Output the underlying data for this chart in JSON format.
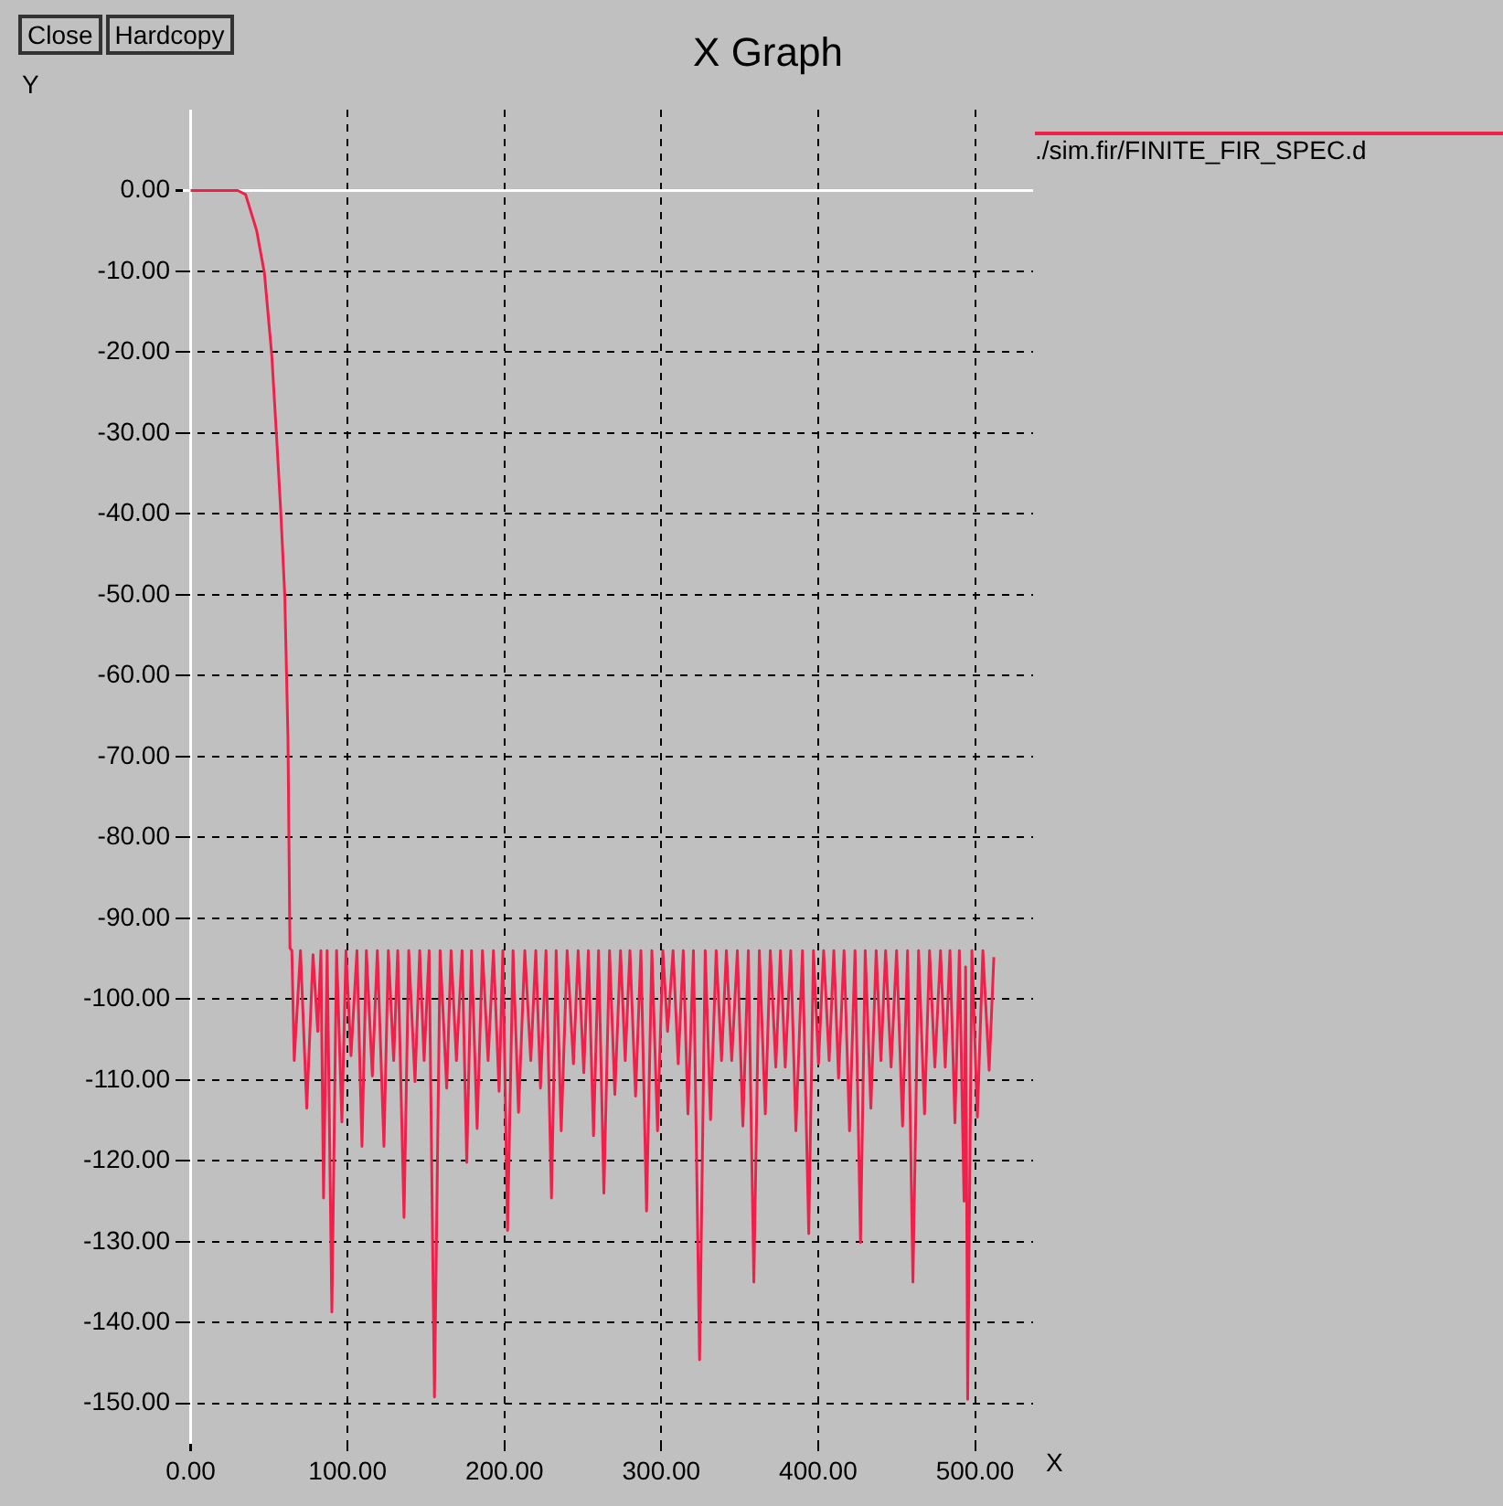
{
  "chart_data": {
    "type": "line",
    "title": "X Graph",
    "xlabel": "X",
    "ylabel": "Y",
    "annotations": [
      "Close",
      "Hardcopy"
    ],
    "xlim": [
      -5,
      537
    ],
    "ylim": [
      -155,
      10
    ],
    "xticks": [
      {
        "value": 0,
        "label": "0.00"
      },
      {
        "value": 100,
        "label": "100.00"
      },
      {
        "value": 200,
        "label": "200.00"
      },
      {
        "value": 300,
        "label": "300.00"
      },
      {
        "value": 400,
        "label": "400.00"
      },
      {
        "value": 500,
        "label": "500.00"
      }
    ],
    "yticks": [
      {
        "value": 0,
        "label": "0.00"
      },
      {
        "value": -10,
        "label": "-10.00"
      },
      {
        "value": -20,
        "label": "-20.00"
      },
      {
        "value": -30,
        "label": "-30.00"
      },
      {
        "value": -40,
        "label": "-40.00"
      },
      {
        "value": -50,
        "label": "-50.00"
      },
      {
        "value": -60,
        "label": "-60.00"
      },
      {
        "value": -70,
        "label": "-70.00"
      },
      {
        "value": -80,
        "label": "-80.00"
      },
      {
        "value": -90,
        "label": "-90.00"
      },
      {
        "value": -100,
        "label": "-100.00"
      },
      {
        "value": -110,
        "label": "-110.00"
      },
      {
        "value": -120,
        "label": "-120.00"
      },
      {
        "value": -130,
        "label": "-130.00"
      },
      {
        "value": -140,
        "label": "-140.00"
      },
      {
        "value": -150,
        "label": "-150.00"
      }
    ],
    "grid": true,
    "legend": "top right",
    "marker": "none",
    "line_style": "solid",
    "series": [
      {
        "name": "./sim.fir/FINITE_FIR_SPEC.d",
        "color": "#f0204a",
        "x": [
          0,
          30,
          35,
          42,
          47,
          51.7,
          54.8,
          57.5,
          60,
          62,
          63.3,
          64.5,
          66,
          70,
          74,
          78,
          81,
          83,
          84.7,
          87,
          90,
          93,
          96.4,
          99,
          102.2,
          106,
          109.2,
          112,
          115.8,
          119,
          123.2,
          126,
          129.4,
          132,
          136,
          139,
          143,
          146,
          148.8,
          152,
          155.4,
          159,
          163.2,
          166,
          169.4,
          173,
          176,
          179,
          182.6,
          186,
          189.6,
          193,
          196.6,
          199,
          202,
          205.5,
          209,
          213,
          216.8,
          220,
          223,
          226.5,
          230,
          233,
          236.2,
          240,
          244,
          247,
          250.6,
          253.5,
          256.8,
          260,
          263.4,
          267,
          270.4,
          274,
          277,
          280,
          283.6,
          287,
          290.6,
          294,
          297.6,
          301,
          304,
          307.5,
          310.8,
          314,
          317,
          320.5,
          324.4,
          328,
          331.4,
          335,
          338.4,
          341.5,
          344.9,
          348.5,
          352,
          355.5,
          359,
          362.5,
          366.3,
          369.5,
          373,
          376,
          379,
          382.5,
          385.8,
          390,
          394,
          397,
          400.2,
          403.5,
          407,
          410,
          413,
          416.5,
          420,
          423.5,
          427,
          430,
          433.6,
          437,
          440,
          443,
          446.5,
          450,
          453.8,
          457,
          460.4,
          464,
          467.8,
          471,
          474.4,
          478,
          481,
          484,
          487.2,
          490,
          493,
          494,
          495.3,
          498,
          501.5,
          505,
          509,
          512
        ],
        "values": [
          0,
          0,
          -0.5,
          -4.9,
          -10.2,
          -20.4,
          -30.6,
          -40,
          -50.2,
          -67.6,
          -93.7,
          -94,
          -107.6,
          -94,
          -113.5,
          -94.5,
          -104,
          -94,
          -124.6,
          -94,
          -138.7,
          -94,
          -115.2,
          -94,
          -107,
          -94,
          -118.2,
          -94,
          -109.5,
          -94,
          -118.2,
          -94,
          -107.6,
          -94,
          -127,
          -94,
          -110.2,
          -94,
          -107.6,
          -94,
          -149.2,
          -94,
          -111,
          -94,
          -107.6,
          -94,
          -120.2,
          -94,
          -116,
          -94,
          -107.6,
          -94,
          -111.4,
          -94,
          -128.6,
          -94,
          -114,
          -94,
          -107.6,
          -94,
          -111,
          -94,
          -124.6,
          -94,
          -116.3,
          -94,
          -108,
          -94,
          -109.1,
          -94,
          -116.9,
          -94,
          -124,
          -94,
          -111.8,
          -94,
          -107.6,
          -94,
          -112,
          -94,
          -126.2,
          -94,
          -116.3,
          -94,
          -104,
          -94,
          -108,
          -94,
          -114.2,
          -94,
          -144.6,
          -94,
          -114.9,
          -94,
          -107.6,
          -94,
          -107.6,
          -94,
          -115.7,
          -94,
          -135,
          -94,
          -114.2,
          -94,
          -108.4,
          -94,
          -108.4,
          -94,
          -116.3,
          -94,
          -129,
          -94,
          -108,
          -94,
          -107.6,
          -94,
          -109.8,
          -94,
          -116.3,
          -94,
          -130.1,
          -94,
          -113.5,
          -94,
          -107.6,
          -94,
          -108.4,
          -94,
          -115.7,
          -94,
          -135,
          -94,
          -114.2,
          -94,
          -108.4,
          -94,
          -108.4,
          -94,
          -115.3,
          -94,
          -125,
          -96,
          -149.5,
          -94,
          -114.6,
          -94,
          -108.8,
          -94.8
        ]
      }
    ]
  }
}
